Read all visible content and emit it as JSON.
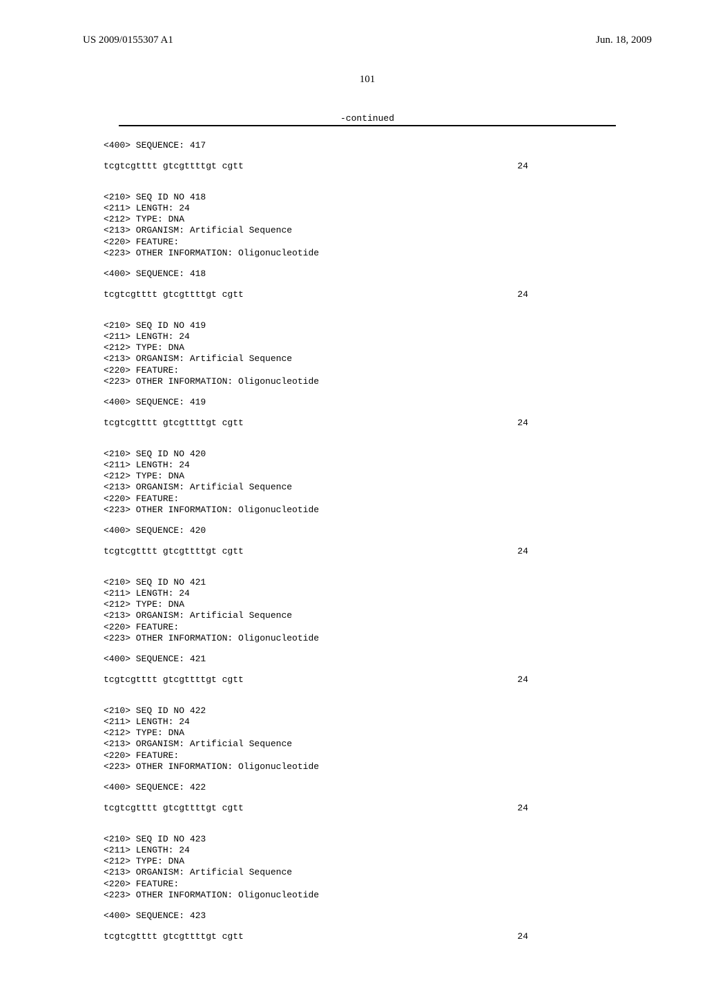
{
  "header": {
    "pub_number": "US 2009/0155307 A1",
    "pub_date": "Jun. 18, 2009"
  },
  "page_number": "101",
  "continued_label": "-continued",
  "entries": [
    {
      "pre_lines": [
        "<400> SEQUENCE: 417"
      ],
      "sequence": "tcgtcgtttt gtcgttttgt cgtt",
      "seq_len": "24"
    },
    {
      "pre_lines": [
        "<210> SEQ ID NO 418",
        "<211> LENGTH: 24",
        "<212> TYPE: DNA",
        "<213> ORGANISM: Artificial Sequence",
        "<220> FEATURE:",
        "<223> OTHER INFORMATION: Oligonucleotide"
      ],
      "seq_header": "<400> SEQUENCE: 418",
      "sequence": "tcgtcgtttt gtcgttttgt cgtt",
      "seq_len": "24"
    },
    {
      "pre_lines": [
        "<210> SEQ ID NO 419",
        "<211> LENGTH: 24",
        "<212> TYPE: DNA",
        "<213> ORGANISM: Artificial Sequence",
        "<220> FEATURE:",
        "<223> OTHER INFORMATION: Oligonucleotide"
      ],
      "seq_header": "<400> SEQUENCE: 419",
      "sequence": "tcgtcgtttt gtcgttttgt cgtt",
      "seq_len": "24"
    },
    {
      "pre_lines": [
        "<210> SEQ ID NO 420",
        "<211> LENGTH: 24",
        "<212> TYPE: DNA",
        "<213> ORGANISM: Artificial Sequence",
        "<220> FEATURE:",
        "<223> OTHER INFORMATION: Oligonucleotide"
      ],
      "seq_header": "<400> SEQUENCE: 420",
      "sequence": "tcgtcgtttt gtcgttttgt cgtt",
      "seq_len": "24"
    },
    {
      "pre_lines": [
        "<210> SEQ ID NO 421",
        "<211> LENGTH: 24",
        "<212> TYPE: DNA",
        "<213> ORGANISM: Artificial Sequence",
        "<220> FEATURE:",
        "<223> OTHER INFORMATION: Oligonucleotide"
      ],
      "seq_header": "<400> SEQUENCE: 421",
      "sequence": "tcgtcgtttt gtcgttttgt cgtt",
      "seq_len": "24"
    },
    {
      "pre_lines": [
        "<210> SEQ ID NO 422",
        "<211> LENGTH: 24",
        "<212> TYPE: DNA",
        "<213> ORGANISM: Artificial Sequence",
        "<220> FEATURE:",
        "<223> OTHER INFORMATION: Oligonucleotide"
      ],
      "seq_header": "<400> SEQUENCE: 422",
      "sequence": "tcgtcgtttt gtcgttttgt cgtt",
      "seq_len": "24"
    },
    {
      "pre_lines": [
        "<210> SEQ ID NO 423",
        "<211> LENGTH: 24",
        "<212> TYPE: DNA",
        "<213> ORGANISM: Artificial Sequence",
        "<220> FEATURE:",
        "<223> OTHER INFORMATION: Oligonucleotide"
      ],
      "seq_header": "<400> SEQUENCE: 423",
      "sequence": "tcgtcgtttt gtcgttttgt cgtt",
      "seq_len": "24"
    }
  ]
}
